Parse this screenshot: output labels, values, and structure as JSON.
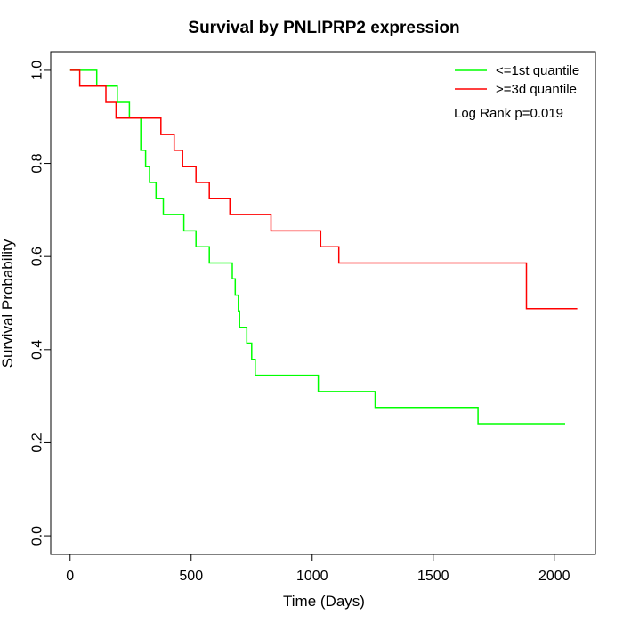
{
  "chart_data": {
    "type": "line",
    "title": "Survival by PNLIPRP2 expression",
    "xlabel": "Time (Days)",
    "ylabel": "Survival Probability",
    "xlim": [
      -80,
      2170
    ],
    "ylim": [
      -0.04,
      1.04
    ],
    "x_ticks": [
      0,
      500,
      1000,
      1500,
      2000
    ],
    "y_ticks": [
      0.0,
      0.2,
      0.4,
      0.6,
      0.8,
      1.0
    ],
    "x_tick_labels": [
      "0",
      "500",
      "1000",
      "1500",
      "2000"
    ],
    "y_tick_labels": [
      "0.0",
      "0.2",
      "0.4",
      "0.6",
      "0.8",
      "1.0"
    ],
    "grid": false,
    "legend_position": "top-right",
    "annotation": "Log Rank p=0.019",
    "series": [
      {
        "name": "<=1st quantile",
        "color": "#00ff00",
        "step_points": [
          [
            0,
            1.0
          ],
          [
            110,
            1.0
          ],
          [
            110,
            0.966
          ],
          [
            195,
            0.966
          ],
          [
            195,
            0.931
          ],
          [
            245,
            0.931
          ],
          [
            245,
            0.897
          ],
          [
            292,
            0.897
          ],
          [
            292,
            0.828
          ],
          [
            312,
            0.828
          ],
          [
            312,
            0.793
          ],
          [
            328,
            0.793
          ],
          [
            328,
            0.759
          ],
          [
            355,
            0.759
          ],
          [
            355,
            0.724
          ],
          [
            385,
            0.724
          ],
          [
            385,
            0.69
          ],
          [
            470,
            0.69
          ],
          [
            470,
            0.655
          ],
          [
            520,
            0.655
          ],
          [
            520,
            0.621
          ],
          [
            575,
            0.621
          ],
          [
            575,
            0.586
          ],
          [
            670,
            0.586
          ],
          [
            670,
            0.552
          ],
          [
            682,
            0.552
          ],
          [
            682,
            0.517
          ],
          [
            695,
            0.517
          ],
          [
            695,
            0.483
          ],
          [
            700,
            0.483
          ],
          [
            700,
            0.448
          ],
          [
            730,
            0.448
          ],
          [
            730,
            0.414
          ],
          [
            750,
            0.414
          ],
          [
            750,
            0.379
          ],
          [
            765,
            0.379
          ],
          [
            765,
            0.345
          ],
          [
            1025,
            0.345
          ],
          [
            1025,
            0.31
          ],
          [
            1260,
            0.31
          ],
          [
            1260,
            0.276
          ],
          [
            1685,
            0.276
          ],
          [
            1685,
            0.241
          ],
          [
            2045,
            0.241
          ]
        ]
      },
      {
        "name": ">=3d quantile",
        "color": "#ff0000",
        "step_points": [
          [
            0,
            1.0
          ],
          [
            40,
            1.0
          ],
          [
            40,
            0.966
          ],
          [
            148,
            0.966
          ],
          [
            148,
            0.931
          ],
          [
            190,
            0.931
          ],
          [
            190,
            0.897
          ],
          [
            375,
            0.897
          ],
          [
            375,
            0.862
          ],
          [
            430,
            0.862
          ],
          [
            430,
            0.828
          ],
          [
            465,
            0.828
          ],
          [
            465,
            0.793
          ],
          [
            520,
            0.793
          ],
          [
            520,
            0.759
          ],
          [
            575,
            0.759
          ],
          [
            575,
            0.724
          ],
          [
            660,
            0.724
          ],
          [
            660,
            0.69
          ],
          [
            830,
            0.69
          ],
          [
            830,
            0.655
          ],
          [
            1035,
            0.655
          ],
          [
            1035,
            0.621
          ],
          [
            1110,
            0.621
          ],
          [
            1110,
            0.586
          ],
          [
            1885,
            0.586
          ],
          [
            1885,
            0.488
          ],
          [
            2095,
            0.488
          ]
        ]
      }
    ]
  }
}
